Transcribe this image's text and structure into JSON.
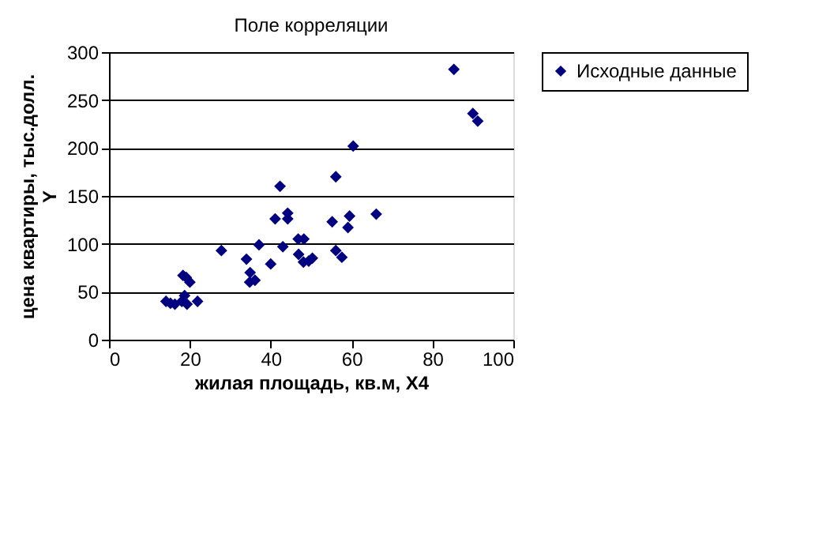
{
  "chart_data": {
    "type": "scatter",
    "title": "Поле корреляции",
    "xlabel": "жилая площадь, кв.м, X4",
    "ylabel": "цена квартиры, тыс.долл.\nY",
    "series": [
      {
        "name": "Исходные данные",
        "color": "#000080",
        "x": [
          14.1,
          15.2,
          16.3,
          18,
          18.7,
          19.3,
          21.9,
          18.3,
          19.1,
          20,
          27.8,
          34,
          34.9,
          34.8,
          36.1,
          37.1,
          40,
          41.1,
          42.3,
          43,
          44.2,
          44.2,
          46.8,
          48.2,
          46.9,
          48.1,
          49.4,
          50.3,
          56.1,
          57.6,
          55.2,
          59.1,
          59.5,
          66.1,
          56.1,
          60.4,
          85.3,
          90,
          91.2
        ],
        "values": [
          40,
          38,
          37,
          40,
          46,
          37,
          40,
          67,
          65,
          60,
          93,
          84,
          70,
          60,
          62,
          99,
          79,
          126,
          160,
          97,
          132,
          126,
          105,
          105,
          89,
          81,
          82,
          85,
          93,
          86,
          123,
          117,
          129,
          131,
          170,
          202,
          282,
          236,
          228
        ]
      }
    ],
    "xlim": [
      0,
      100
    ],
    "xticks": [
      0,
      20,
      40,
      60,
      80,
      100
    ],
    "ylim": [
      0,
      300
    ],
    "yticks": [
      0,
      50,
      100,
      150,
      200,
      250,
      300
    ],
    "grid": "y",
    "legend": "right",
    "marker": "diamond"
  }
}
